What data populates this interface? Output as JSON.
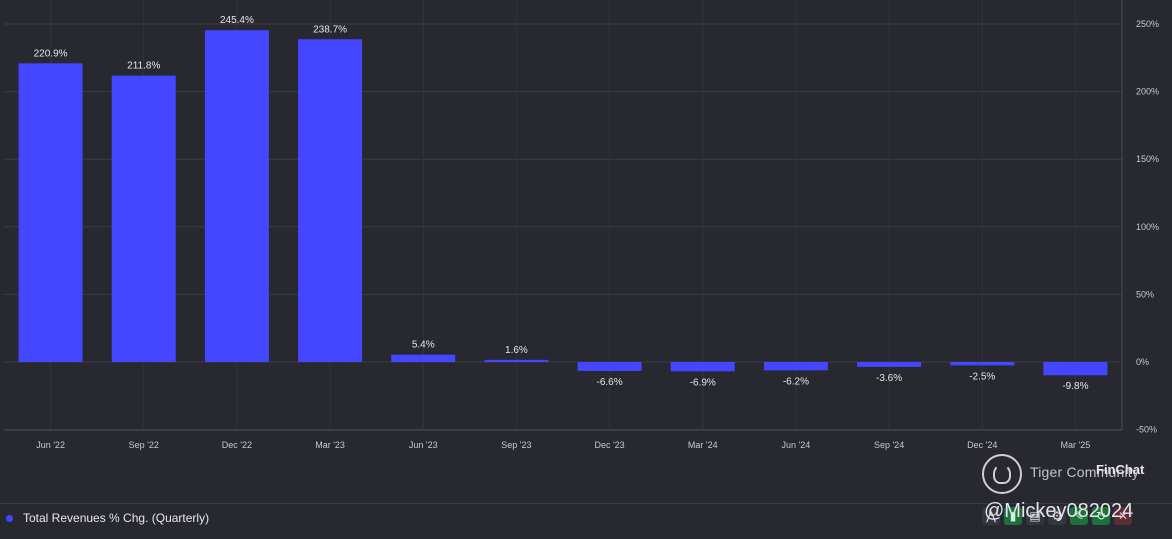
{
  "chart_data": {
    "type": "bar",
    "categories": [
      "Jun '22",
      "Sep '22",
      "Dec '22",
      "Mar '23",
      "Jun '23",
      "Sep '23",
      "Dec '23",
      "Mar '24",
      "Jun '24",
      "Sep '24",
      "Dec '24",
      "Mar '25"
    ],
    "series": [
      {
        "name": "Total Revenues % Chg. (Quarterly)",
        "values": [
          220.9,
          211.8,
          245.4,
          238.7,
          5.4,
          1.6,
          -6.6,
          -6.9,
          -6.2,
          -3.6,
          -2.5,
          -9.8
        ],
        "labels": [
          "220.9%",
          "211.8%",
          "245.4%",
          "238.7%",
          "5.4%",
          "1.6%",
          "-6.6%",
          "-6.9%",
          "-6.2%",
          "-3.6%",
          "-2.5%",
          "-9.8%"
        ]
      }
    ],
    "y_ticks": [
      250,
      200,
      150,
      100,
      50,
      0,
      -50
    ],
    "y_tick_labels": [
      "250%",
      "200%",
      "150%",
      "100%",
      "50%",
      "0%",
      "-50%"
    ],
    "ylim": [
      -50,
      250
    ],
    "y_axis_side": "right",
    "grid": true,
    "bar_color": "#4447ff",
    "background": "#272830"
  },
  "legend": {
    "label": "Total Revenues % Chg. (Quarterly)",
    "color": "#4447ff"
  },
  "watermark": {
    "brand": "Tiger Community",
    "finchat": "FinChat",
    "user": "@Mickey082024"
  }
}
